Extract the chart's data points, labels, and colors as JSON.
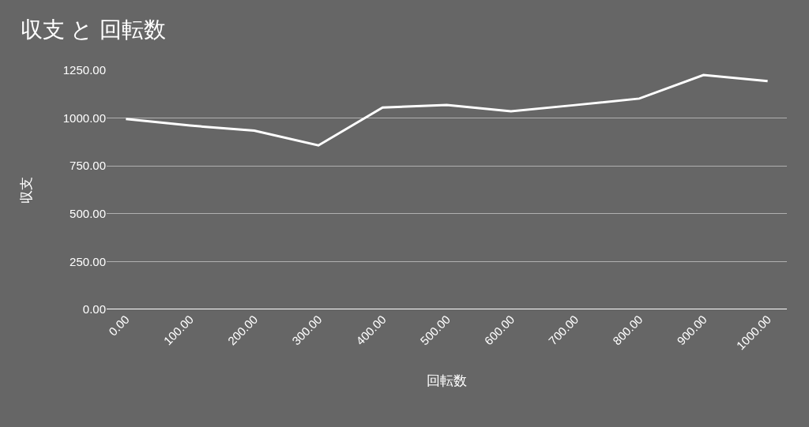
{
  "chart_data": {
    "type": "line",
    "title": "収支 と 回転数",
    "xlabel": "回転数",
    "ylabel": "収支",
    "x": [
      0,
      100,
      200,
      300,
      400,
      500,
      600,
      700,
      800,
      900,
      1000
    ],
    "series": [
      {
        "color": "#ffffff",
        "values": [
          995,
          961,
          934,
          857,
          1055,
          1068,
          1036,
          1068,
          1102,
          1225,
          1193
        ]
      }
    ],
    "xlim": [
      -30,
      1030
    ],
    "xticks": [
      {
        "value": 0,
        "label": "0.00"
      },
      {
        "value": 100,
        "label": "100.00"
      },
      {
        "value": 200,
        "label": "200.00"
      },
      {
        "value": 300,
        "label": "300.00"
      },
      {
        "value": 400,
        "label": "400.00"
      },
      {
        "value": 500,
        "label": "500.00"
      },
      {
        "value": 600,
        "label": "600.00"
      },
      {
        "value": 700,
        "label": "700.00"
      },
      {
        "value": 800,
        "label": "800.00"
      },
      {
        "value": 900,
        "label": "900.00"
      },
      {
        "value": 1000,
        "label": "1000.00"
      }
    ],
    "ylim": [
      0,
      1250
    ],
    "yticks": [
      {
        "value": 0,
        "label": "0.00"
      },
      {
        "value": 250,
        "label": "250.00"
      },
      {
        "value": 500,
        "label": "500.00"
      },
      {
        "value": 750,
        "label": "750.00"
      },
      {
        "value": 1000,
        "label": "1000.00"
      },
      {
        "value": 1250,
        "label": "1250.00"
      }
    ],
    "grid": "y",
    "marker": "none",
    "line_style": "solid"
  }
}
